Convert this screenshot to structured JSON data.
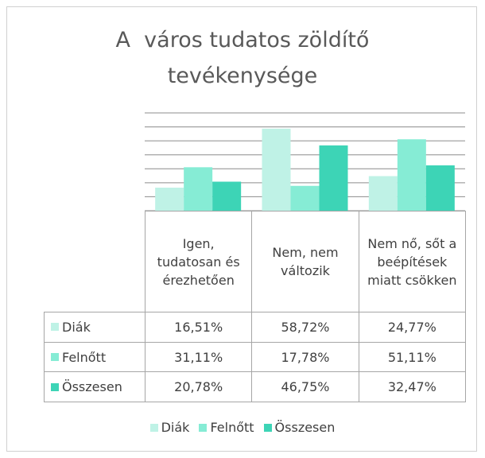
{
  "chart_data": {
    "type": "bar",
    "title": "A  város tudatos zöldítő tevékenysége",
    "categories": [
      "Igen, tudatosan és érezhetően",
      "Nem, nem változik",
      "Nem nő, sőt a beépítések miatt csökken"
    ],
    "series": [
      {
        "name": "Diák",
        "color": "#bff2e6",
        "values": [
          16.51,
          58.72,
          24.77
        ],
        "value_labels": [
          "16,51%",
          "58,72%",
          "24,77%"
        ]
      },
      {
        "name": "Felnőtt",
        "color": "#86ecd5",
        "values": [
          31.11,
          17.78,
          51.11
        ],
        "value_labels": [
          "31,11%",
          "17,78%",
          "51,11%"
        ]
      },
      {
        "name": "Összesen",
        "color": "#3dd4b6",
        "values": [
          20.78,
          46.75,
          32.47
        ],
        "value_labels": [
          "20,78%",
          "46,75%",
          "32,47%"
        ]
      }
    ],
    "ylim": [
      0,
      70
    ],
    "yticks": [
      0,
      10,
      20,
      30,
      40,
      50,
      60,
      70
    ],
    "grid": true,
    "legend": "bottom"
  }
}
